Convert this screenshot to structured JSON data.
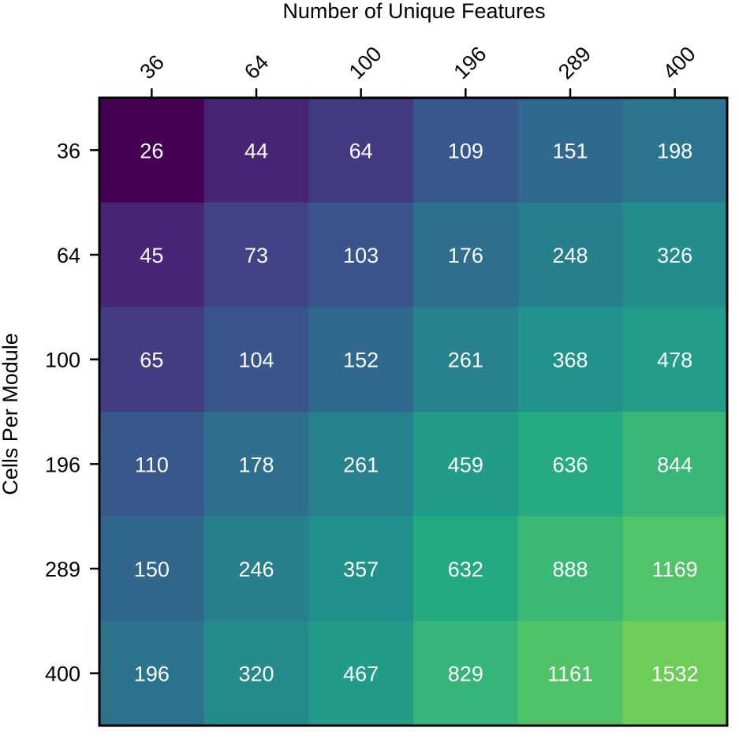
{
  "chart_data": {
    "type": "heatmap",
    "title": "",
    "xlabel": "Number of Unique Features",
    "ylabel": "Cells Per Module",
    "x_categories": [
      "36",
      "64",
      "100",
      "196",
      "289",
      "400"
    ],
    "y_categories": [
      "36",
      "64",
      "100",
      "196",
      "289",
      "400"
    ],
    "values": [
      [
        26,
        44,
        64,
        109,
        151,
        198
      ],
      [
        45,
        73,
        103,
        176,
        248,
        326
      ],
      [
        65,
        104,
        152,
        261,
        368,
        478
      ],
      [
        110,
        178,
        261,
        459,
        636,
        844
      ],
      [
        150,
        246,
        357,
        632,
        888,
        1169
      ],
      [
        196,
        320,
        467,
        829,
        1161,
        1532
      ]
    ],
    "colormap": "viridis",
    "color_scale": "log",
    "xaxis_position": "top",
    "grid": false,
    "legend": "none"
  }
}
